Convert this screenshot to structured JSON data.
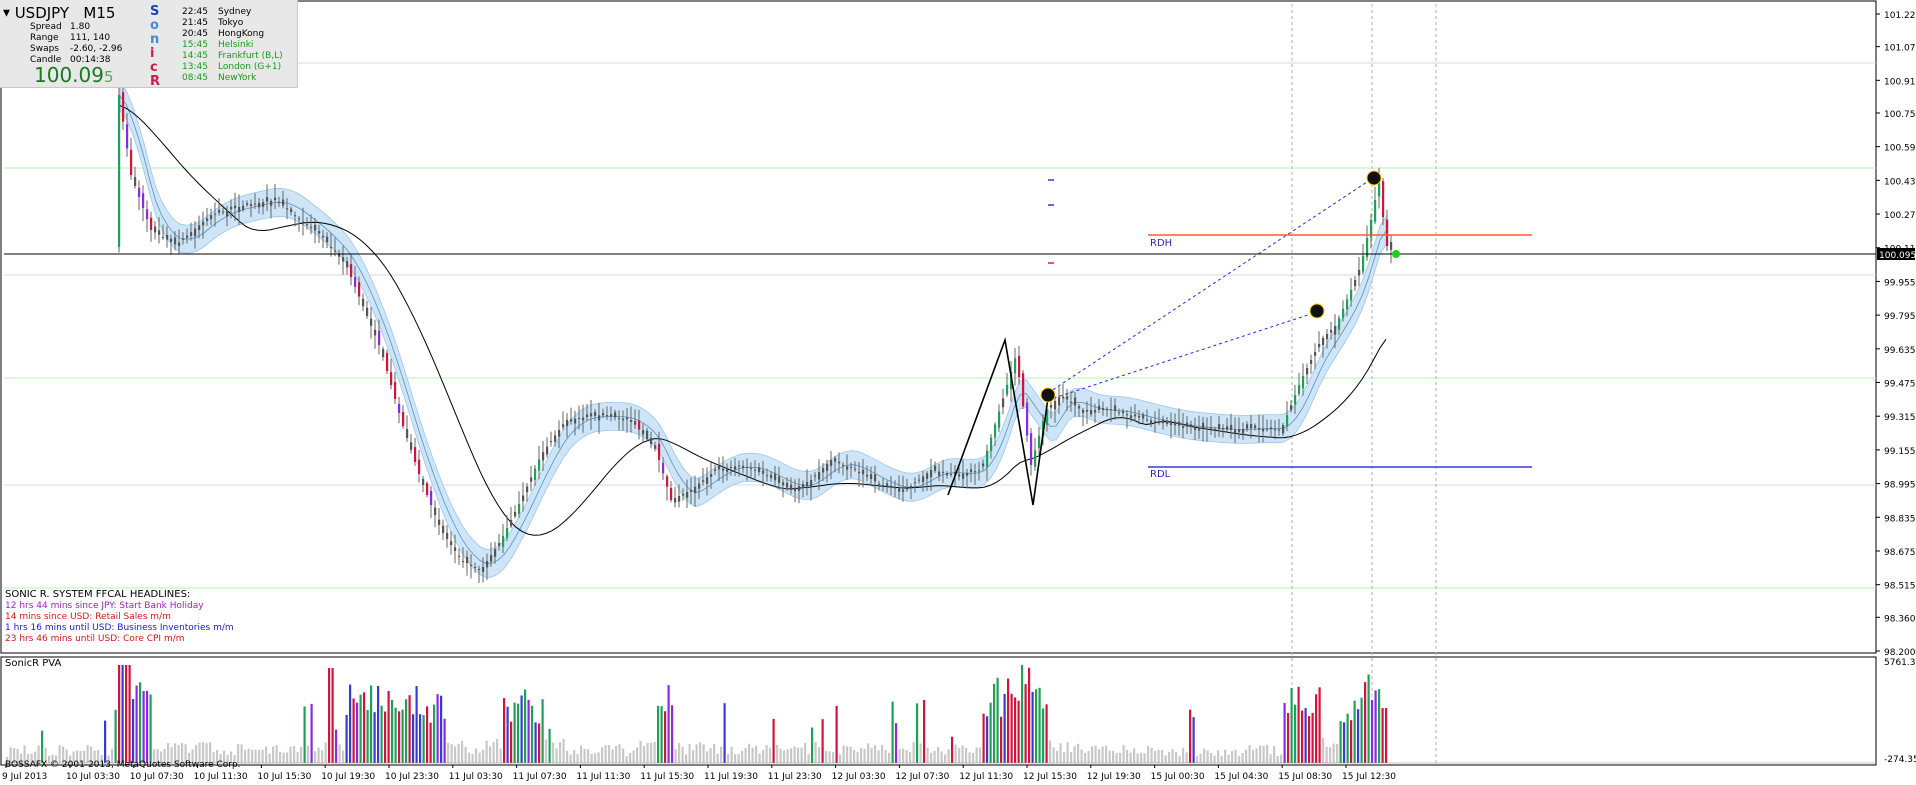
{
  "symbol": "USDJPY",
  "timeframe": "M15",
  "info_panel": {
    "rows": [
      {
        "label": "Spread",
        "value": "1.80"
      },
      {
        "label": "Range",
        "value": "111, 140"
      },
      {
        "label": "Swaps",
        "value": "-2.60, -2.96"
      },
      {
        "label": "Candle",
        "value": "00:14:38"
      }
    ],
    "price_main": "100.09",
    "price_last_digit": "5",
    "sonic_letters": [
      {
        "ch": "S",
        "color": "#1f3fbf"
      },
      {
        "ch": "o",
        "color": "#4a8ad4"
      },
      {
        "ch": "n",
        "color": "#4a8ad4"
      },
      {
        "ch": "i",
        "color": "#d01a4a"
      },
      {
        "ch": "c",
        "color": "#d01a4a"
      },
      {
        "ch": "R",
        "color": "#d01a4a"
      }
    ],
    "sessions": [
      {
        "time": "22:45",
        "name": "Sydney",
        "color": "#000000"
      },
      {
        "time": "21:45",
        "name": "Tokyo",
        "color": "#000000"
      },
      {
        "time": "20:45",
        "name": "HongKong",
        "color": "#000000"
      },
      {
        "time": "15:45",
        "name": "Helsinki",
        "color": "#1a9a1a"
      },
      {
        "time": "14:45",
        "name": "Frankfurt  (B,L)",
        "color": "#1a9a1a"
      },
      {
        "time": "13:45",
        "name": "London  (G+1)",
        "color": "#1a9a1a"
      },
      {
        "time": "08:45",
        "name": "NewYork",
        "color": "#1a9a1a"
      }
    ]
  },
  "headlines": {
    "title": "SONIC R. SYSTEM  FFCAL HEADLINES:",
    "items": [
      {
        "text": "12 hrs 44 mins since JPY: Start Bank Holiday",
        "color": "#a020c0"
      },
      {
        "text": "14 mins since USD: Retail Sales m/m",
        "color": "#d01a1a"
      },
      {
        "text": "1 hrs 16 mins until USD: Business Inventories m/m",
        "color": "#1a1ad0"
      },
      {
        "text": "23 hrs 46 mins until USD: Core CPI m/m",
        "color": "#d01a1a"
      }
    ]
  },
  "price_axis": [
    "101.225",
    "101.070",
    "100.910",
    "100.755",
    "100.595",
    "100.435",
    "100.275",
    "100.115",
    "99.955",
    "99.795",
    "99.635",
    "99.475",
    "99.315",
    "99.155",
    "98.995",
    "98.835",
    "98.675",
    "98.515",
    "98.360",
    "98.200"
  ],
  "current_price_tag": "100.095",
  "level_labels": {
    "rdh": "RDH",
    "rdl": "RDL"
  },
  "indicator": {
    "name": "SonicR PVA",
    "axis_top": "5761.35",
    "axis_bottom": "-274.35"
  },
  "time_axis": [
    "9 Jul 2013",
    "10 Jul 03:30",
    "10 Jul 07:30",
    "10 Jul 11:30",
    "10 Jul 15:30",
    "10 Jul 19:30",
    "10 Jul 23:30",
    "11 Jul 03:30",
    "11 Jul 07:30",
    "11 Jul 11:30",
    "11 Jul 15:30",
    "11 Jul 19:30",
    "11 Jul 23:30",
    "12 Jul 03:30",
    "12 Jul 07:30",
    "12 Jul 11:30",
    "12 Jul 15:30",
    "12 Jul 19:30",
    "15 Jul 00:30",
    "15 Jul 04:30",
    "15 Jul 08:30",
    "15 Jul 12:30"
  ],
  "copyright": "BOSSAFX © 2001-2013, MetaQuotes Software Corp.",
  "colors": {
    "bull": "#1fa05a",
    "bear": "#d2143c",
    "purple": "#8a2be2",
    "band": "#cde5f7",
    "rdh": "#ff5a36",
    "rdl": "#3a3ad0",
    "grid_green": "#b8f0b8",
    "grid_blue": "#d6d6f0"
  }
}
